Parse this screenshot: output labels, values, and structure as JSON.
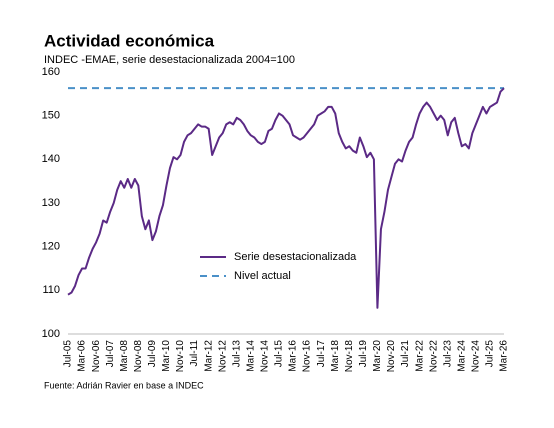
{
  "chart_data": {
    "type": "line",
    "title": "Actividad económica",
    "subtitle": "INDEC -EMAE, serie desestacionalizada 2004=100",
    "source": "Fuente: Adrián Ravier en base a INDEC",
    "categories": [
      "Jul-05",
      null,
      null,
      null,
      "Mar-06",
      null,
      null,
      null,
      "Nov-06",
      null,
      null,
      null,
      "Jul-07",
      null,
      null,
      null,
      "Mar-08",
      null,
      null,
      null,
      "Nov-08",
      null,
      null,
      null,
      "Jul-09",
      null,
      null,
      null,
      "Mar-10",
      null,
      null,
      null,
      "Nov-10",
      null,
      null,
      null,
      "Jul-11",
      null,
      null,
      null,
      "Mar-12",
      null,
      null,
      null,
      "Nov-12",
      null,
      null,
      null,
      "Jul-13",
      null,
      null,
      null,
      "Mar-14",
      null,
      null,
      null,
      "Nov-14",
      null,
      null,
      null,
      "Jul-15",
      null,
      null,
      null,
      "Mar-16",
      null,
      null,
      null,
      "Nov-16",
      null,
      null,
      null,
      "Jul-17",
      null,
      null,
      null,
      "Mar-18",
      null,
      null,
      null,
      "Nov-18",
      null,
      null,
      null,
      "Jul-19",
      null,
      null,
      null,
      "Mar-20",
      null,
      null,
      null,
      "Nov-20",
      null,
      null,
      null,
      "Jul-21",
      null,
      null,
      null,
      "Mar-22",
      null,
      null,
      null,
      "Nov-22",
      null,
      null,
      null,
      "Jul-23",
      null,
      null,
      null,
      "Mar-24",
      null,
      null,
      null,
      "Nov-24",
      null,
      null,
      null,
      "Jul-25",
      null,
      null,
      null,
      "Mar-26"
    ],
    "series": [
      {
        "name": "Serie desestacionalizada",
        "color": "#5b2a86",
        "values": [
          109,
          109.5,
          111,
          113.5,
          115,
          115,
          117.5,
          119.5,
          121,
          123,
          126,
          125.5,
          128,
          130,
          133,
          135,
          133.5,
          135.5,
          133.5,
          135.5,
          134,
          127,
          124,
          126,
          121.5,
          123.5,
          127,
          129.5,
          134,
          138,
          140.5,
          140,
          141,
          144,
          145.5,
          146,
          147,
          148,
          147.5,
          147.5,
          147,
          141,
          143,
          145,
          146,
          148,
          148.5,
          148,
          149.5,
          149,
          148,
          146.5,
          145.5,
          145,
          144,
          143.5,
          144,
          146.5,
          147,
          149,
          150.5,
          150,
          149,
          148,
          145.5,
          145,
          144.5,
          145,
          146,
          147,
          148,
          150,
          150.5,
          151,
          152,
          152,
          150.5,
          146,
          144,
          142.5,
          143,
          142,
          141.5,
          145,
          143,
          140.5,
          141.5,
          140,
          106,
          124,
          128,
          133,
          136,
          139,
          140,
          139.5,
          142,
          144,
          145,
          148,
          150.5,
          152,
          153,
          152,
          150.5,
          149,
          150,
          149,
          145.5,
          148.5,
          149.5,
          146,
          143,
          143.5,
          142.5,
          146,
          148,
          150,
          152,
          150.5,
          152,
          152.5,
          153,
          155.5,
          156.3
        ]
      }
    ],
    "reference_line": {
      "name": "Nivel actual",
      "value": 156.3,
      "color": "#4a90c8"
    },
    "ylim": [
      100,
      160
    ],
    "yticks": [
      100,
      110,
      120,
      130,
      140,
      150,
      160
    ],
    "grid": false
  }
}
